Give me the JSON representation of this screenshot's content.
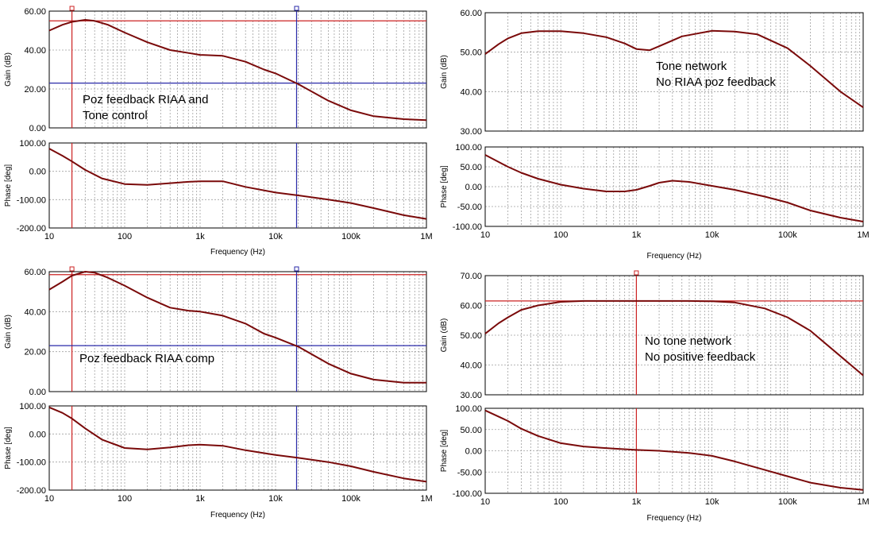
{
  "colors": {
    "curve": "#7a0a0a",
    "cursor_red": "#cc2222",
    "cursor_blue": "#2a2aa8",
    "grid": "#a0a0a0",
    "frame": "#000000"
  },
  "x_ticks": [
    "10",
    "100",
    "1k",
    "10k",
    "100k",
    "1M"
  ],
  "chart_data": [
    {
      "type": "line",
      "name": "top-left",
      "xscale": "log",
      "xlim": [
        10,
        1000000
      ],
      "xlabel": "Frequency (Hz)",
      "xlabel_color": "#cc2222",
      "annotations": [
        "Poz feedback RIAA and",
        "Tone control"
      ],
      "cursors": [
        {
          "x": 20,
          "color": "#cc2222",
          "level": 55
        },
        {
          "x": 19000,
          "color": "#2a2aa8",
          "level": 23
        }
      ],
      "gain": {
        "ylabel": "Gain (dB)",
        "ylim": [
          0,
          60
        ],
        "y_ticks": [
          "0.00",
          "20.00",
          "40.00",
          "60.00"
        ],
        "x": [
          10,
          15,
          20,
          30,
          40,
          60,
          100,
          200,
          400,
          700,
          1000,
          2000,
          4000,
          7000,
          10000,
          20000,
          50000,
          100000,
          200000,
          500000,
          1000000
        ],
        "y": [
          50,
          53,
          54.5,
          55.5,
          55,
          53,
          49,
          44,
          40,
          38.5,
          37.5,
          37,
          34,
          30,
          28,
          22.5,
          14,
          9,
          6,
          4.5,
          4
        ]
      },
      "phase": {
        "ylabel": "Phase [deg]",
        "ylim": [
          -200,
          100
        ],
        "y_ticks": [
          "-200.00",
          "-100.00",
          "0.00",
          "100.00"
        ],
        "x": [
          10,
          15,
          20,
          30,
          50,
          100,
          200,
          400,
          700,
          1000,
          2000,
          4000,
          10000,
          20000,
          50000,
          100000,
          200000,
          500000,
          1000000
        ],
        "y": [
          80,
          55,
          35,
          5,
          -25,
          -45,
          -48,
          -42,
          -37,
          -35,
          -35,
          -55,
          -75,
          -85,
          -100,
          -112,
          -130,
          -155,
          -168
        ]
      }
    },
    {
      "type": "line",
      "name": "top-right",
      "xscale": "log",
      "xlim": [
        10,
        1000000
      ],
      "xlabel": "Frequency (Hz)",
      "xlabel_color": "#000000",
      "annotations": [
        "Tone network",
        "No RIAA poz feedback"
      ],
      "cursors": [],
      "gain": {
        "ylabel": "Gain (dB)",
        "ylim": [
          30,
          60
        ],
        "y_ticks": [
          "30.00",
          "40.00",
          "50.00",
          "60.00"
        ],
        "x": [
          10,
          15,
          20,
          30,
          50,
          100,
          200,
          400,
          700,
          1000,
          1500,
          2000,
          4000,
          10000,
          20000,
          40000,
          100000,
          200000,
          500000,
          1000000
        ],
        "y": [
          49.5,
          52,
          53.5,
          54.8,
          55.3,
          55.3,
          54.8,
          53.8,
          52.2,
          50.8,
          50.5,
          51.5,
          54,
          55.4,
          55.2,
          54.5,
          51,
          46.5,
          40,
          36
        ]
      },
      "phase": {
        "ylabel": "Phase [deg]",
        "ylim": [
          -100,
          100
        ],
        "y_ticks": [
          "-100.00",
          "-50.00",
          "0.00",
          "50.00",
          "100.00"
        ],
        "x": [
          10,
          20,
          30,
          50,
          100,
          200,
          400,
          700,
          1000,
          1500,
          2000,
          3000,
          5000,
          10000,
          20000,
          50000,
          100000,
          200000,
          500000,
          1000000
        ],
        "y": [
          80,
          50,
          35,
          20,
          5,
          -5,
          -12,
          -12,
          -8,
          2,
          10,
          15,
          12,
          2,
          -8,
          -25,
          -40,
          -60,
          -78,
          -88
        ]
      }
    },
    {
      "type": "line",
      "name": "bottom-left",
      "xscale": "log",
      "xlim": [
        10,
        1000000
      ],
      "xlabel": "Frequency (Hz)",
      "xlabel_color": "#000000",
      "annotations": [
        "Poz feedback RIAA comp"
      ],
      "cursors": [
        {
          "x": 20,
          "color": "#cc2222",
          "level": 58.5
        },
        {
          "x": 19000,
          "color": "#2a2aa8",
          "level": 23
        }
      ],
      "gain": {
        "ylabel": "Gain (dB)",
        "ylim": [
          0,
          60
        ],
        "y_ticks": [
          "0.00",
          "20.00",
          "40.00",
          "60.00"
        ],
        "x": [
          10,
          15,
          20,
          30,
          40,
          60,
          100,
          200,
          400,
          700,
          1000,
          2000,
          4000,
          7000,
          10000,
          20000,
          50000,
          100000,
          200000,
          500000,
          1000000
        ],
        "y": [
          51,
          55,
          58,
          60,
          59.5,
          57,
          53,
          47,
          42,
          40.5,
          40,
          38,
          34,
          29,
          27,
          22.5,
          14,
          9,
          6,
          4.5,
          4.5
        ]
      },
      "phase": {
        "ylabel": "Phase [deg]",
        "ylim": [
          -200,
          100
        ],
        "y_ticks": [
          "-200.00",
          "-100.00",
          "0.00",
          "100.00"
        ],
        "x": [
          10,
          15,
          20,
          30,
          50,
          100,
          200,
          400,
          700,
          1000,
          2000,
          4000,
          10000,
          20000,
          50000,
          100000,
          200000,
          500000,
          1000000
        ],
        "y": [
          95,
          75,
          55,
          20,
          -20,
          -50,
          -55,
          -48,
          -40,
          -38,
          -42,
          -58,
          -75,
          -85,
          -100,
          -115,
          -135,
          -158,
          -170
        ]
      }
    },
    {
      "type": "line",
      "name": "bottom-right",
      "xscale": "log",
      "xlim": [
        10,
        1000000
      ],
      "xlabel": "Frequency (Hz)",
      "xlabel_color": "#000000",
      "annotations": [
        "No tone network",
        "No positive feedback"
      ],
      "cursors": [
        {
          "x": 1000,
          "color": "#cc2222",
          "level": 61.5
        }
      ],
      "gain": {
        "ylabel": "Gain (dB)",
        "ylim": [
          30,
          70
        ],
        "y_ticks": [
          "30.00",
          "40.00",
          "50.00",
          "60.00",
          "70.00"
        ],
        "x": [
          10,
          15,
          20,
          30,
          50,
          100,
          200,
          500,
          1000,
          5000,
          10000,
          20000,
          50000,
          100000,
          200000,
          500000,
          1000000
        ],
        "y": [
          50.5,
          54,
          56,
          58.5,
          60,
          61.2,
          61.5,
          61.5,
          61.5,
          61.5,
          61.4,
          61,
          59,
          56,
          51.5,
          43,
          36.5
        ]
      },
      "phase": {
        "ylabel": "Phase [deg]",
        "ylim": [
          -100,
          100
        ],
        "y_ticks": [
          "-100.00",
          "-50.00",
          "0.00",
          "50.00",
          "100.00"
        ],
        "x": [
          10,
          20,
          30,
          50,
          100,
          200,
          500,
          1000,
          2000,
          5000,
          10000,
          20000,
          50000,
          100000,
          200000,
          500000,
          1000000
        ],
        "y": [
          95,
          70,
          52,
          35,
          18,
          10,
          5,
          2,
          0,
          -5,
          -12,
          -25,
          -45,
          -60,
          -75,
          -87,
          -92
        ]
      }
    }
  ]
}
